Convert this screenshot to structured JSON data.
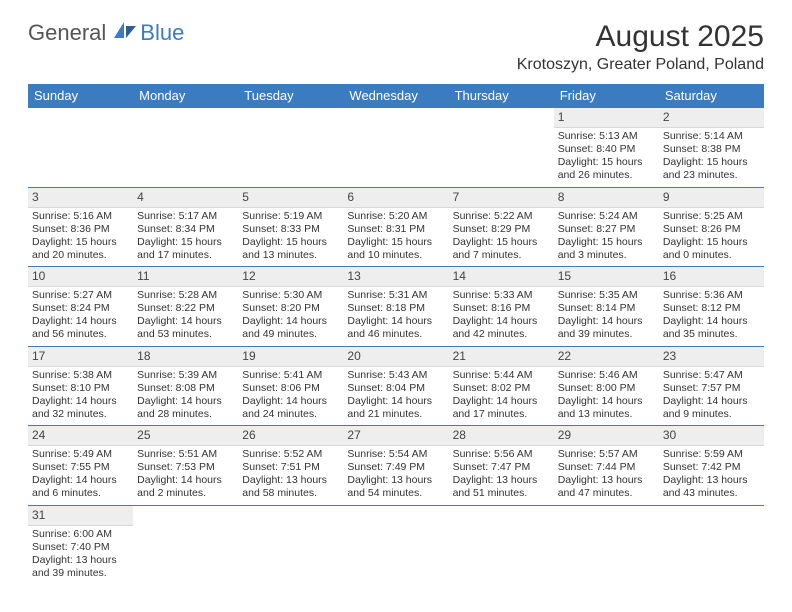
{
  "logo": {
    "word1": "General",
    "word2": "Blue"
  },
  "title": "August 2025",
  "location": "Krotoszyn, Greater Poland, Poland",
  "colors": {
    "header_bg": "#3a7cbf",
    "header_fg": "#ffffff",
    "shade_bg": "#f2f2f2",
    "row_border": "#3a7cbf",
    "text": "#333333"
  },
  "weekdays": [
    "Sunday",
    "Monday",
    "Tuesday",
    "Wednesday",
    "Thursday",
    "Friday",
    "Saturday"
  ],
  "weeks": [
    [
      null,
      null,
      null,
      null,
      null,
      {
        "d": "1",
        "sr": "Sunrise: 5:13 AM",
        "ss": "Sunset: 8:40 PM",
        "dl1": "Daylight: 15 hours",
        "dl2": "and 26 minutes."
      },
      {
        "d": "2",
        "sr": "Sunrise: 5:14 AM",
        "ss": "Sunset: 8:38 PM",
        "dl1": "Daylight: 15 hours",
        "dl2": "and 23 minutes."
      }
    ],
    [
      {
        "d": "3",
        "sr": "Sunrise: 5:16 AM",
        "ss": "Sunset: 8:36 PM",
        "dl1": "Daylight: 15 hours",
        "dl2": "and 20 minutes."
      },
      {
        "d": "4",
        "sr": "Sunrise: 5:17 AM",
        "ss": "Sunset: 8:34 PM",
        "dl1": "Daylight: 15 hours",
        "dl2": "and 17 minutes."
      },
      {
        "d": "5",
        "sr": "Sunrise: 5:19 AM",
        "ss": "Sunset: 8:33 PM",
        "dl1": "Daylight: 15 hours",
        "dl2": "and 13 minutes."
      },
      {
        "d": "6",
        "sr": "Sunrise: 5:20 AM",
        "ss": "Sunset: 8:31 PM",
        "dl1": "Daylight: 15 hours",
        "dl2": "and 10 minutes."
      },
      {
        "d": "7",
        "sr": "Sunrise: 5:22 AM",
        "ss": "Sunset: 8:29 PM",
        "dl1": "Daylight: 15 hours",
        "dl2": "and 7 minutes."
      },
      {
        "d": "8",
        "sr": "Sunrise: 5:24 AM",
        "ss": "Sunset: 8:27 PM",
        "dl1": "Daylight: 15 hours",
        "dl2": "and 3 minutes."
      },
      {
        "d": "9",
        "sr": "Sunrise: 5:25 AM",
        "ss": "Sunset: 8:26 PM",
        "dl1": "Daylight: 15 hours",
        "dl2": "and 0 minutes."
      }
    ],
    [
      {
        "d": "10",
        "sr": "Sunrise: 5:27 AM",
        "ss": "Sunset: 8:24 PM",
        "dl1": "Daylight: 14 hours",
        "dl2": "and 56 minutes."
      },
      {
        "d": "11",
        "sr": "Sunrise: 5:28 AM",
        "ss": "Sunset: 8:22 PM",
        "dl1": "Daylight: 14 hours",
        "dl2": "and 53 minutes."
      },
      {
        "d": "12",
        "sr": "Sunrise: 5:30 AM",
        "ss": "Sunset: 8:20 PM",
        "dl1": "Daylight: 14 hours",
        "dl2": "and 49 minutes."
      },
      {
        "d": "13",
        "sr": "Sunrise: 5:31 AM",
        "ss": "Sunset: 8:18 PM",
        "dl1": "Daylight: 14 hours",
        "dl2": "and 46 minutes."
      },
      {
        "d": "14",
        "sr": "Sunrise: 5:33 AM",
        "ss": "Sunset: 8:16 PM",
        "dl1": "Daylight: 14 hours",
        "dl2": "and 42 minutes."
      },
      {
        "d": "15",
        "sr": "Sunrise: 5:35 AM",
        "ss": "Sunset: 8:14 PM",
        "dl1": "Daylight: 14 hours",
        "dl2": "and 39 minutes."
      },
      {
        "d": "16",
        "sr": "Sunrise: 5:36 AM",
        "ss": "Sunset: 8:12 PM",
        "dl1": "Daylight: 14 hours",
        "dl2": "and 35 minutes."
      }
    ],
    [
      {
        "d": "17",
        "sr": "Sunrise: 5:38 AM",
        "ss": "Sunset: 8:10 PM",
        "dl1": "Daylight: 14 hours",
        "dl2": "and 32 minutes."
      },
      {
        "d": "18",
        "sr": "Sunrise: 5:39 AM",
        "ss": "Sunset: 8:08 PM",
        "dl1": "Daylight: 14 hours",
        "dl2": "and 28 minutes."
      },
      {
        "d": "19",
        "sr": "Sunrise: 5:41 AM",
        "ss": "Sunset: 8:06 PM",
        "dl1": "Daylight: 14 hours",
        "dl2": "and 24 minutes."
      },
      {
        "d": "20",
        "sr": "Sunrise: 5:43 AM",
        "ss": "Sunset: 8:04 PM",
        "dl1": "Daylight: 14 hours",
        "dl2": "and 21 minutes."
      },
      {
        "d": "21",
        "sr": "Sunrise: 5:44 AM",
        "ss": "Sunset: 8:02 PM",
        "dl1": "Daylight: 14 hours",
        "dl2": "and 17 minutes."
      },
      {
        "d": "22",
        "sr": "Sunrise: 5:46 AM",
        "ss": "Sunset: 8:00 PM",
        "dl1": "Daylight: 14 hours",
        "dl2": "and 13 minutes."
      },
      {
        "d": "23",
        "sr": "Sunrise: 5:47 AM",
        "ss": "Sunset: 7:57 PM",
        "dl1": "Daylight: 14 hours",
        "dl2": "and 9 minutes."
      }
    ],
    [
      {
        "d": "24",
        "sr": "Sunrise: 5:49 AM",
        "ss": "Sunset: 7:55 PM",
        "dl1": "Daylight: 14 hours",
        "dl2": "and 6 minutes."
      },
      {
        "d": "25",
        "sr": "Sunrise: 5:51 AM",
        "ss": "Sunset: 7:53 PM",
        "dl1": "Daylight: 14 hours",
        "dl2": "and 2 minutes."
      },
      {
        "d": "26",
        "sr": "Sunrise: 5:52 AM",
        "ss": "Sunset: 7:51 PM",
        "dl1": "Daylight: 13 hours",
        "dl2": "and 58 minutes."
      },
      {
        "d": "27",
        "sr": "Sunrise: 5:54 AM",
        "ss": "Sunset: 7:49 PM",
        "dl1": "Daylight: 13 hours",
        "dl2": "and 54 minutes."
      },
      {
        "d": "28",
        "sr": "Sunrise: 5:56 AM",
        "ss": "Sunset: 7:47 PM",
        "dl1": "Daylight: 13 hours",
        "dl2": "and 51 minutes."
      },
      {
        "d": "29",
        "sr": "Sunrise: 5:57 AM",
        "ss": "Sunset: 7:44 PM",
        "dl1": "Daylight: 13 hours",
        "dl2": "and 47 minutes."
      },
      {
        "d": "30",
        "sr": "Sunrise: 5:59 AM",
        "ss": "Sunset: 7:42 PM",
        "dl1": "Daylight: 13 hours",
        "dl2": "and 43 minutes."
      }
    ],
    [
      {
        "d": "31",
        "sr": "Sunrise: 6:00 AM",
        "ss": "Sunset: 7:40 PM",
        "dl1": "Daylight: 13 hours",
        "dl2": "and 39 minutes."
      },
      null,
      null,
      null,
      null,
      null,
      null
    ]
  ]
}
